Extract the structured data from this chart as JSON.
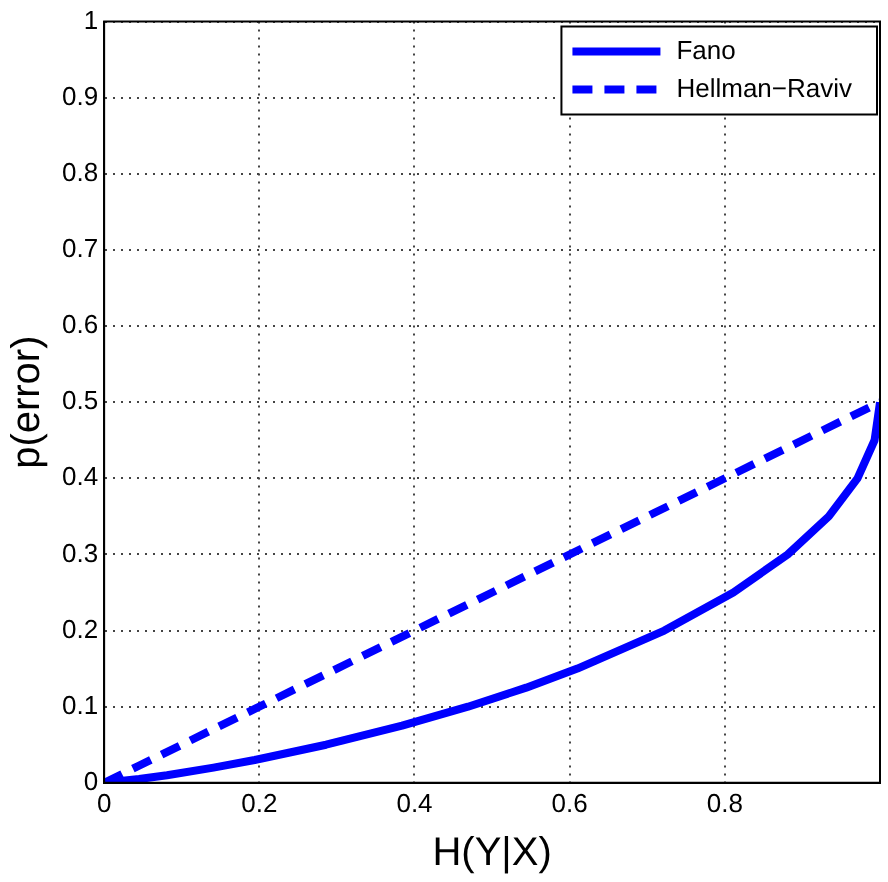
{
  "chart_data": {
    "type": "line",
    "xlabel": "H(Y|X)",
    "ylabel": "p(error)",
    "xlim": [
      0,
      1
    ],
    "xticks": [
      0,
      0.2,
      0.4,
      0.6,
      0.8
    ],
    "ylim": [
      0,
      1
    ],
    "yticks": [
      0,
      0.1,
      0.2,
      0.3,
      0.4,
      0.5,
      0.6,
      0.7,
      0.8,
      0.9,
      1
    ],
    "grid": true,
    "legend": "top right",
    "marker": "none",
    "series": [
      {
        "name": "Fano",
        "color": "#0000ff",
        "line_style": "solid",
        "x": [
          0,
          0.045,
          0.081,
          0.141,
          0.194,
          0.286,
          0.384,
          0.469,
          0.544,
          0.61,
          0.722,
          0.811,
          0.881,
          0.934,
          0.971,
          0.993,
          1
        ],
        "values": [
          0,
          0.005,
          0.01,
          0.02,
          0.03,
          0.05,
          0.075,
          0.1,
          0.125,
          0.15,
          0.2,
          0.25,
          0.3,
          0.35,
          0.4,
          0.45,
          0.5
        ]
      },
      {
        "name": "Hellman−Raviv",
        "color": "#0000ff",
        "line_style": "dashed",
        "x": [
          0,
          1
        ],
        "values": [
          0,
          0.5
        ]
      }
    ]
  }
}
